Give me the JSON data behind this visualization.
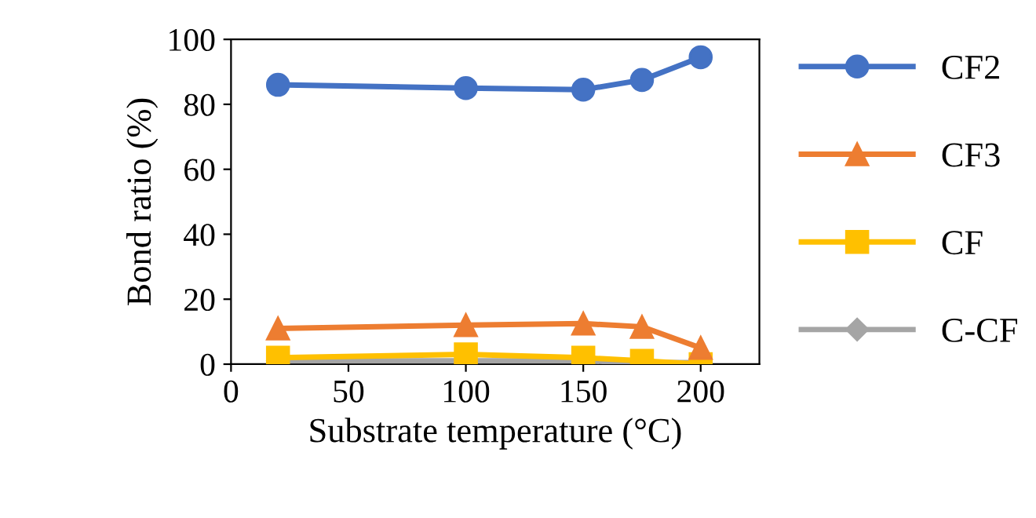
{
  "chart_data": {
    "type": "line",
    "xlabel": "Substrate temperature (°C)",
    "ylabel": "Bond ratio (%)",
    "x": [
      20,
      100,
      150,
      175,
      200
    ],
    "series": [
      {
        "name": "CF2",
        "color": "#4472c4",
        "marker": "circle",
        "values": [
          86,
          85,
          84.5,
          87.5,
          94.5
        ]
      },
      {
        "name": "CF3",
        "color": "#ed7d31",
        "marker": "triangle",
        "values": [
          11,
          12,
          12.5,
          11.5,
          5
        ]
      },
      {
        "name": "CF",
        "color": "#ffc000",
        "marker": "square",
        "values": [
          2,
          3,
          2,
          1,
          0
        ]
      },
      {
        "name": "C-CF",
        "color": "#a5a5a5",
        "marker": "diamond",
        "values": [
          1,
          1,
          1,
          0.5,
          0.5
        ]
      }
    ],
    "xlim": [
      0,
      225
    ],
    "xticks": [
      0,
      50,
      100,
      150,
      200
    ],
    "ylim": [
      0,
      100
    ],
    "yticks": [
      0,
      20,
      40,
      60,
      80,
      100
    ],
    "grid": false,
    "legend": "right",
    "line_style": "solid"
  }
}
